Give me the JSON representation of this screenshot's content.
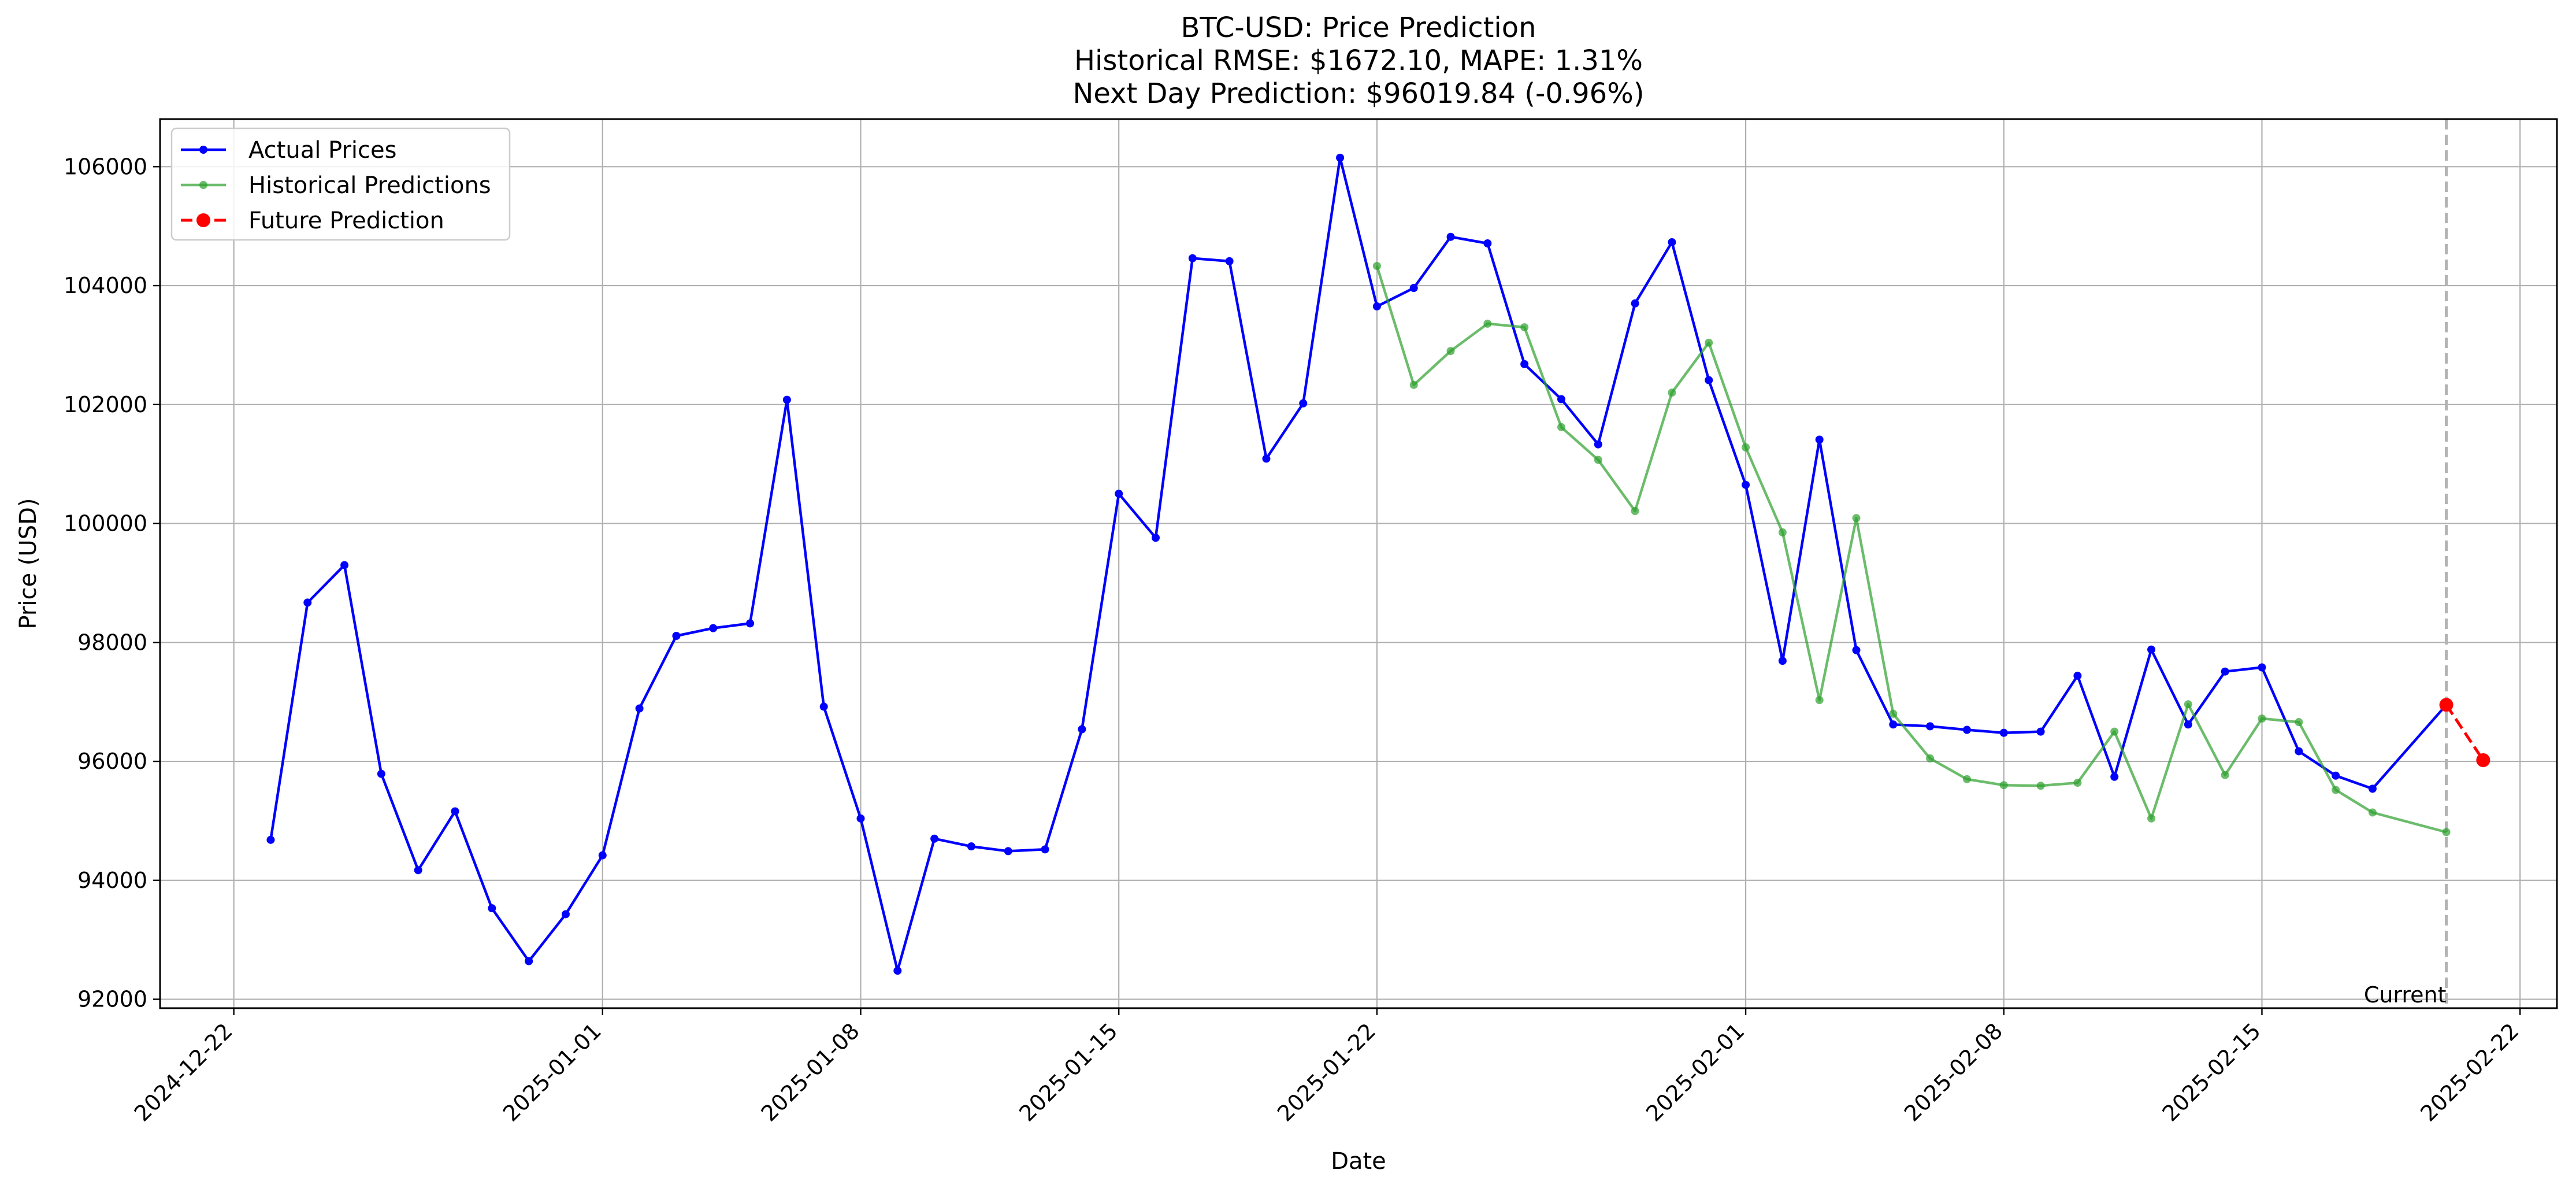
{
  "chart_data": {
    "type": "line",
    "title_lines": [
      "BTC-USD: Price Prediction",
      "Historical RMSE: $1672.10, MAPE: 1.31%",
      "Next Day Prediction: $96019.84 (-0.96%)"
    ],
    "xlabel": "Date",
    "ylabel": "Price (USD)",
    "xlim": [
      "2024-12-20",
      "2025-02-23"
    ],
    "ylim": [
      91850,
      106800
    ],
    "grid": true,
    "legend_position": "top-left",
    "x_ticks": [
      "2024-12-22",
      "2025-01-01",
      "2025-01-08",
      "2025-01-15",
      "2025-01-22",
      "2025-02-01",
      "2025-02-08",
      "2025-02-15",
      "2025-02-22"
    ],
    "y_ticks": [
      92000,
      94000,
      96000,
      98000,
      100000,
      102000,
      104000,
      106000
    ],
    "series": [
      {
        "name": "Actual Prices",
        "color": "#0000ff",
        "style": "solid-dot",
        "points": [
          [
            "2024-12-23",
            94680
          ],
          [
            "2024-12-24",
            98670
          ],
          [
            "2024-12-25",
            99300
          ],
          [
            "2024-12-26",
            95790
          ],
          [
            "2024-12-27",
            94170
          ],
          [
            "2024-12-28",
            95160
          ],
          [
            "2024-12-29",
            93530
          ],
          [
            "2024-12-30",
            92640
          ],
          [
            "2024-12-31",
            93430
          ],
          [
            "2025-01-01",
            94420
          ],
          [
            "2025-01-02",
            96890
          ],
          [
            "2025-01-03",
            98110
          ],
          [
            "2025-01-04",
            98240
          ],
          [
            "2025-01-05",
            98320
          ],
          [
            "2025-01-06",
            102080
          ],
          [
            "2025-01-07",
            96920
          ],
          [
            "2025-01-08",
            95040
          ],
          [
            "2025-01-09",
            92480
          ],
          [
            "2025-01-10",
            94700
          ],
          [
            "2025-01-11",
            94570
          ],
          [
            "2025-01-12",
            94490
          ],
          [
            "2025-01-13",
            94520
          ],
          [
            "2025-01-14",
            96540
          ],
          [
            "2025-01-15",
            100500
          ],
          [
            "2025-01-16",
            99760
          ],
          [
            "2025-01-17",
            104460
          ],
          [
            "2025-01-18",
            104410
          ],
          [
            "2025-01-19",
            101090
          ],
          [
            "2025-01-20",
            102020
          ],
          [
            "2025-01-21",
            106150
          ],
          [
            "2025-01-22",
            103650
          ],
          [
            "2025-01-23",
            103960
          ],
          [
            "2025-01-24",
            104820
          ],
          [
            "2025-01-25",
            104710
          ],
          [
            "2025-01-26",
            102680
          ],
          [
            "2025-01-27",
            102090
          ],
          [
            "2025-01-28",
            101330
          ],
          [
            "2025-01-29",
            103700
          ],
          [
            "2025-01-30",
            104730
          ],
          [
            "2025-01-31",
            102410
          ],
          [
            "2025-02-01",
            100650
          ],
          [
            "2025-02-02",
            97690
          ],
          [
            "2025-02-03",
            101410
          ],
          [
            "2025-02-04",
            97870
          ],
          [
            "2025-02-05",
            96620
          ],
          [
            "2025-02-06",
            96590
          ],
          [
            "2025-02-07",
            96530
          ],
          [
            "2025-02-08",
            96480
          ],
          [
            "2025-02-09",
            96500
          ],
          [
            "2025-02-10",
            97440
          ],
          [
            "2025-02-11",
            95740
          ],
          [
            "2025-02-12",
            97880
          ],
          [
            "2025-02-13",
            96620
          ],
          [
            "2025-02-14",
            97510
          ],
          [
            "2025-02-15",
            97580
          ],
          [
            "2025-02-16",
            96170
          ],
          [
            "2025-02-17",
            95760
          ],
          [
            "2025-02-18",
            95540
          ],
          [
            "2025-02-20",
            96950
          ]
        ]
      },
      {
        "name": "Historical Predictions",
        "color": "#2ca02c",
        "style": "solid-dot",
        "points": [
          [
            "2025-01-22",
            104330
          ],
          [
            "2025-01-23",
            102330
          ],
          [
            "2025-01-24",
            102900
          ],
          [
            "2025-01-25",
            103360
          ],
          [
            "2025-01-26",
            103300
          ],
          [
            "2025-01-27",
            101620
          ],
          [
            "2025-01-28",
            101070
          ],
          [
            "2025-01-29",
            100210
          ],
          [
            "2025-01-30",
            102200
          ],
          [
            "2025-01-31",
            103040
          ],
          [
            "2025-02-01",
            101280
          ],
          [
            "2025-02-02",
            99850
          ],
          [
            "2025-02-03",
            97030
          ],
          [
            "2025-02-04",
            100090
          ],
          [
            "2025-02-05",
            96800
          ],
          [
            "2025-02-06",
            96050
          ],
          [
            "2025-02-07",
            95700
          ],
          [
            "2025-02-08",
            95600
          ],
          [
            "2025-02-09",
            95590
          ],
          [
            "2025-02-10",
            95640
          ],
          [
            "2025-02-11",
            96500
          ],
          [
            "2025-02-12",
            95040
          ],
          [
            "2025-02-13",
            96960
          ],
          [
            "2025-02-14",
            95770
          ],
          [
            "2025-02-15",
            96720
          ],
          [
            "2025-02-16",
            96660
          ],
          [
            "2025-02-17",
            95520
          ],
          [
            "2025-02-18",
            95140
          ],
          [
            "2025-02-20",
            94810
          ]
        ]
      },
      {
        "name": "Future Prediction",
        "color": "#ff0000",
        "style": "dashed-dot",
        "points": [
          [
            "2025-02-20",
            96950
          ],
          [
            "2025-02-21",
            96019.84
          ]
        ]
      }
    ],
    "annotations": [
      {
        "type": "vline",
        "x": "2025-02-20",
        "color": "#b3b3b3",
        "style": "dashed",
        "label": "Current"
      }
    ]
  }
}
